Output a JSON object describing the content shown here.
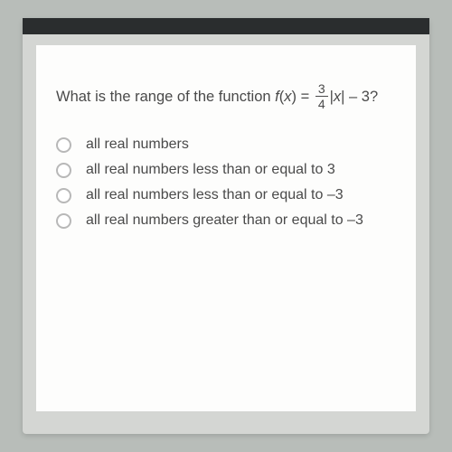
{
  "question": {
    "prefix": "What is the range of the function ",
    "func_left": "f",
    "func_paren_open": "(",
    "func_var": "x",
    "func_paren_close": ") = ",
    "frac_num": "3",
    "frac_den": "4",
    "abs_open": "|",
    "abs_var": "x",
    "abs_close": "| – 3?"
  },
  "options": [
    {
      "text": "all real numbers"
    },
    {
      "text": "all real numbers less than or equal to 3"
    },
    {
      "text": "all real numbers less than or equal to –3"
    },
    {
      "text": "all real numbers greater than or equal to –3"
    }
  ]
}
